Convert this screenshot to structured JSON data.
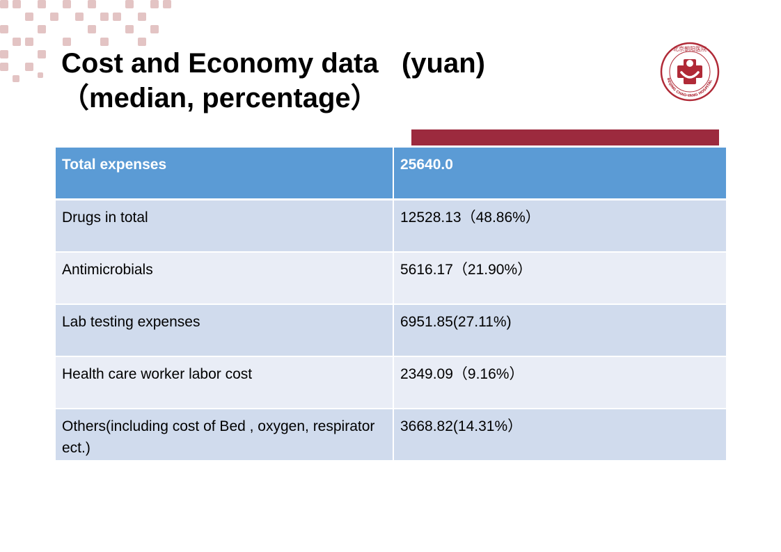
{
  "colors": {
    "header_bg": "#5b9bd5",
    "row_dark": "#d0dbed",
    "row_light": "#e9edf6",
    "accent_bar": "#9c2a3e",
    "decor_pink": "#e3c4c4"
  },
  "slide": {
    "title_line1": "Cost and Economy data   (yuan)",
    "title_line2": "（median, percentage）"
  },
  "logo": {
    "text_top": "北京朝阳医院",
    "text_ring": "BEIJING CHAO-YANG HOSPITAL"
  },
  "table": {
    "header": {
      "label": "Total expenses",
      "value": "25640.0"
    },
    "rows": [
      {
        "label": "Drugs in total",
        "value": "12528.13（48.86%）"
      },
      {
        "label": "Antimicrobials",
        "value": "5616.17（21.90%）"
      },
      {
        "label": "Lab testing expenses",
        "value": "6951.85(27.11%)"
      },
      {
        "label": "Health care worker labor cost",
        "value": "2349.09（9.16%）"
      },
      {
        "label": "Others(including cost of  Bed , oxygen, respirator ect.)",
        "value": "3668.82(14.31%）"
      }
    ]
  }
}
